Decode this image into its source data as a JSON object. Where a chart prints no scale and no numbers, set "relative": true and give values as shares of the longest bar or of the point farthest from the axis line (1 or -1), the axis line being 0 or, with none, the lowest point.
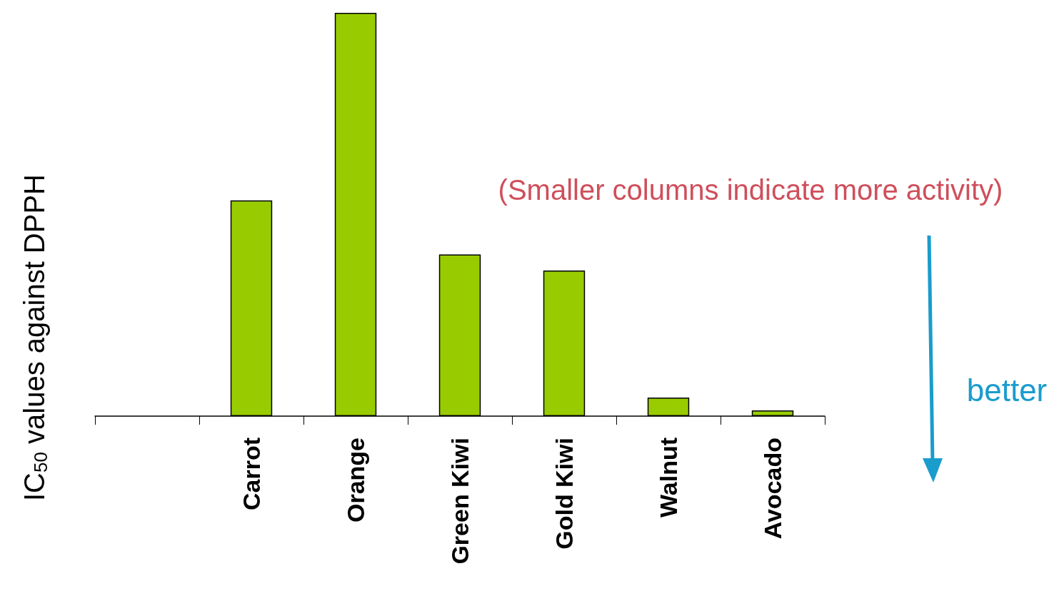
{
  "chart_data": {
    "type": "bar",
    "relative": true,
    "ylabel": "IC$_{50}$ values against DPPH",
    "categories": [
      null,
      "Carrot",
      "Orange",
      "Green Kiwi",
      "Gold Kiwi",
      "Walnut",
      "Avocado"
    ],
    "values": [
      null,
      0.535,
      1,
      0.401,
      0.361,
      0.046,
      0.014
    ],
    "color": "#99cc00",
    "grid": false,
    "annotations": [
      "(Smaller columns indicate more activity)",
      "better"
    ]
  }
}
